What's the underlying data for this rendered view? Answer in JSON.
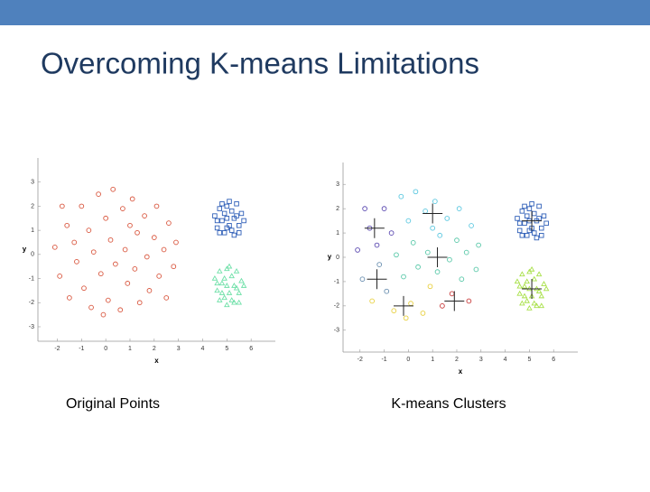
{
  "header": {
    "title": "Overcoming K-means Limitations"
  },
  "chart_data": [
    {
      "type": "scatter",
      "title": "Original Points",
      "xlabel": "x",
      "ylabel": "y",
      "xlim": [
        -2.8,
        7
      ],
      "ylim": [
        -3.6,
        4
      ],
      "xticks": [
        -2,
        -1,
        0,
        1,
        2,
        3,
        4,
        5,
        6
      ],
      "yticks": [
        -3,
        -2,
        -1,
        0,
        1,
        2,
        3
      ],
      "series": [
        {
          "color": "#d9573f",
          "marker": "circle",
          "x": [
            -2.1,
            -1.9,
            -1.6,
            -1.5,
            -1.3,
            -1.2,
            -1.0,
            -0.9,
            -0.7,
            -0.6,
            -0.5,
            -0.3,
            -0.2,
            0.0,
            0.1,
            0.2,
            0.3,
            0.4,
            0.6,
            0.7,
            0.8,
            0.9,
            1.1,
            1.2,
            1.3,
            1.4,
            1.6,
            1.7,
            1.8,
            2.0,
            2.1,
            2.2,
            2.4,
            2.5,
            2.6,
            2.8,
            2.9,
            -1.8,
            -0.1,
            1.0
          ],
          "values": [
            0.3,
            -0.9,
            1.2,
            -1.8,
            0.5,
            -0.3,
            2.0,
            -1.4,
            1.0,
            -2.2,
            0.1,
            2.5,
            -0.8,
            1.5,
            -1.9,
            0.6,
            2.7,
            -0.4,
            -2.3,
            1.9,
            0.2,
            -1.2,
            2.3,
            -0.6,
            0.9,
            -2.0,
            1.6,
            -0.1,
            -1.5,
            0.7,
            2.0,
            -0.9,
            0.2,
            -1.8,
            1.3,
            -0.5,
            0.5,
            2.0,
            -2.5,
            1.2
          ]
        },
        {
          "color": "#2f5fb8",
          "marker": "square",
          "x": [
            4.5,
            4.6,
            4.7,
            4.8,
            4.9,
            5.0,
            5.0,
            5.1,
            5.2,
            5.3,
            5.3,
            5.4,
            5.5,
            5.6,
            4.6,
            4.9,
            5.2,
            5.4,
            5.7,
            4.7,
            5.1,
            5.5,
            4.8,
            5.0
          ],
          "values": [
            1.6,
            1.1,
            1.9,
            1.4,
            0.9,
            2.0,
            1.5,
            1.2,
            1.8,
            0.8,
            1.5,
            2.1,
            1.2,
            1.7,
            1.4,
            1.7,
            1.0,
            1.6,
            1.4,
            0.9,
            2.2,
            0.9,
            2.1,
            1.1
          ]
        },
        {
          "color": "#6fe0a8",
          "marker": "triangle",
          "x": [
            4.5,
            4.6,
            4.7,
            4.8,
            4.9,
            5.0,
            5.0,
            5.1,
            5.2,
            5.3,
            5.3,
            5.4,
            5.5,
            5.6,
            4.6,
            4.9,
            5.2,
            5.4,
            5.7,
            4.7,
            5.1,
            5.5,
            4.8,
            5.0
          ],
          "values": [
            -1.0,
            -1.5,
            -0.7,
            -1.2,
            -1.8,
            -0.6,
            -1.3,
            -1.6,
            -0.9,
            -2.0,
            -1.3,
            -0.7,
            -1.6,
            -1.1,
            -1.2,
            -1.0,
            -1.9,
            -1.4,
            -1.3,
            -1.9,
            -0.5,
            -2.0,
            -1.6,
            -2.1
          ]
        }
      ]
    },
    {
      "type": "scatter",
      "title": "K-means Clusters",
      "xlabel": "x",
      "ylabel": "y",
      "xlim": [
        -2.7,
        7
      ],
      "ylim": [
        -3.9,
        3.9
      ],
      "xticks": [
        -2,
        -1,
        0,
        1,
        2,
        3,
        4,
        5,
        6
      ],
      "yticks": [
        -3,
        -2,
        -1,
        0,
        1,
        2,
        3
      ],
      "series": [
        {
          "color": "#5a48b0",
          "marker": "circle",
          "x": [
            -2.1,
            -1.6,
            -1.3,
            -1.0,
            -0.7,
            -1.8
          ],
          "values": [
            0.3,
            1.2,
            0.5,
            2.0,
            1.0,
            2.0
          ]
        },
        {
          "color": "#5cc8e0",
          "marker": "circle",
          "x": [
            -0.3,
            0.0,
            0.3,
            0.7,
            1.1,
            1.3,
            1.6,
            2.1,
            2.6,
            1.0
          ],
          "values": [
            2.5,
            1.5,
            2.7,
            1.9,
            2.3,
            0.9,
            1.6,
            2.0,
            1.3,
            1.2
          ]
        },
        {
          "color": "#58c8a8",
          "marker": "circle",
          "x": [
            -0.5,
            -0.2,
            0.2,
            0.4,
            0.8,
            1.2,
            1.7,
            2.0,
            2.2,
            2.4,
            2.8,
            2.9
          ],
          "values": [
            0.1,
            -0.8,
            0.6,
            -0.4,
            0.2,
            -0.6,
            -0.1,
            0.7,
            -0.9,
            0.2,
            -0.5,
            0.5
          ]
        },
        {
          "color": "#6a8fb0",
          "marker": "circle",
          "x": [
            -1.9,
            -1.2,
            -0.9
          ],
          "values": [
            -0.9,
            -0.3,
            -1.4
          ]
        },
        {
          "color": "#e8d040",
          "marker": "circle",
          "x": [
            -1.5,
            -0.6,
            0.1,
            0.6,
            0.9,
            -0.1
          ],
          "values": [
            -1.8,
            -2.2,
            -1.9,
            -2.3,
            -1.2,
            -2.5
          ]
        },
        {
          "color": "#c83838",
          "marker": "circle",
          "x": [
            1.4,
            1.8,
            2.5
          ],
          "values": [
            -2.0,
            -1.5,
            -1.8
          ]
        },
        {
          "color": "#2f5fb8",
          "marker": "square",
          "x": [
            4.5,
            4.6,
            4.7,
            4.8,
            4.9,
            5.0,
            5.0,
            5.1,
            5.2,
            5.3,
            5.3,
            5.4,
            5.5,
            5.6,
            4.6,
            4.9,
            5.2,
            5.4,
            5.7,
            4.7,
            5.1,
            5.5,
            4.8,
            5.0
          ],
          "values": [
            1.6,
            1.1,
            1.9,
            1.4,
            0.9,
            2.0,
            1.5,
            1.2,
            1.8,
            0.8,
            1.5,
            2.1,
            1.2,
            1.7,
            1.4,
            1.7,
            1.0,
            1.6,
            1.4,
            0.9,
            2.2,
            0.9,
            2.1,
            1.1
          ]
        },
        {
          "color": "#a8e048",
          "marker": "triangle",
          "x": [
            4.5,
            4.6,
            4.7,
            4.8,
            4.9,
            5.0,
            5.0,
            5.1,
            5.2,
            5.3,
            5.3,
            5.4,
            5.5,
            5.6,
            4.6,
            4.9,
            5.2,
            5.4,
            5.7,
            4.7,
            5.1,
            5.5,
            4.8,
            5.0
          ],
          "values": [
            -1.0,
            -1.5,
            -0.7,
            -1.2,
            -1.8,
            -0.6,
            -1.3,
            -1.6,
            -0.9,
            -2.0,
            -1.3,
            -0.7,
            -1.6,
            -1.1,
            -1.2,
            -1.0,
            -1.9,
            -1.4,
            -1.3,
            -1.9,
            -0.5,
            -2.0,
            -1.6,
            -2.1
          ]
        },
        {
          "color": "#222222",
          "marker": "plus",
          "x": [
            -1.4,
            1.0,
            1.2,
            -1.3,
            -0.2,
            1.9,
            5.1,
            5.1
          ],
          "values": [
            1.2,
            1.8,
            0.0,
            -0.9,
            -2.0,
            -1.8,
            1.5,
            -1.3
          ]
        }
      ]
    }
  ]
}
